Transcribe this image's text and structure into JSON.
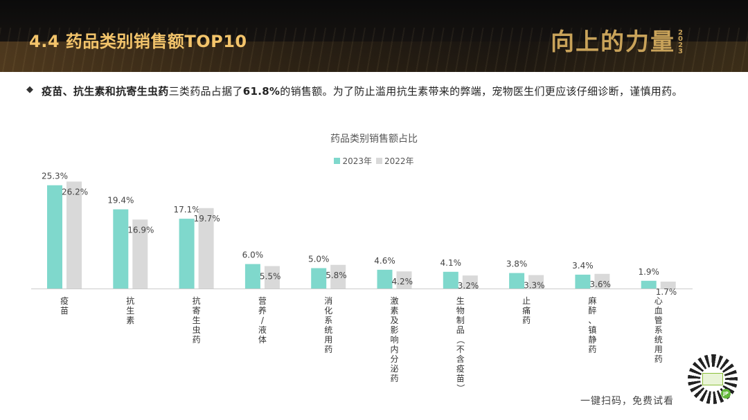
{
  "header": {
    "title": "4.4 药品类别销售额TOP10",
    "logo_text": "向上的力量",
    "logo_year": [
      "2",
      "0",
      "2",
      "3"
    ]
  },
  "summary": {
    "bold_1": "疫苗、抗生素和抗寄生虫药",
    "text_1": "三类药品占据了",
    "bold_2": "61.8%",
    "text_2": "的销售额。为了防止滥用抗生素带来的弊端，宠物医生们更应该仔细诊断，谨慎用药。"
  },
  "colors": {
    "series_2023": "#7fd8cc",
    "series_2022": "#d9d9d9"
  },
  "chart_data": {
    "type": "bar",
    "title": "药品类别销售额占比",
    "categories": [
      "疫苗",
      "抗生素",
      "抗寄生虫药",
      "营养/液体",
      "消化系统用药",
      "激素及影响内分泌药",
      "生物制品（不含疫苗）",
      "止痛药",
      "麻醉、镇静药",
      "心血管系统用药"
    ],
    "series": [
      {
        "name": "2023年",
        "values": [
          25.3,
          19.4,
          17.1,
          6.0,
          5.0,
          4.6,
          4.1,
          3.8,
          3.4,
          1.9
        ],
        "labels": [
          "25.3%",
          "19.4%",
          "17.1%",
          "6.0%",
          "5.0%",
          "4.6%",
          "4.1%",
          "3.8%",
          "3.4%",
          "1.9%"
        ]
      },
      {
        "name": "2022年",
        "values": [
          26.2,
          16.9,
          19.7,
          5.5,
          5.8,
          4.2,
          3.2,
          3.3,
          3.6,
          1.7
        ],
        "labels": [
          "26.2%",
          "16.9%",
          "19.7%",
          "5.5%",
          "5.8%",
          "4.2%",
          "3.2%",
          "3.3%",
          "3.6%",
          "1.7%"
        ]
      }
    ],
    "legend": "top-center",
    "grid": false
  },
  "footer": {
    "scan_text": "一键扫码，免费试看",
    "qr_badge": "JP"
  }
}
